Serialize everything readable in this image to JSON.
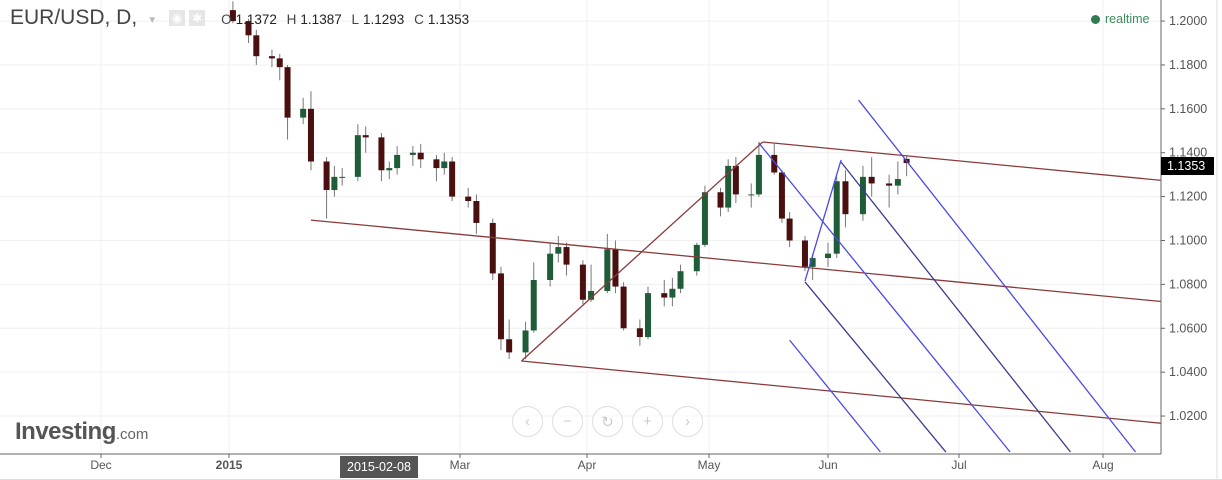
{
  "header": {
    "symbol": "EUR/USD, D,",
    "ohlc": [
      {
        "key": "O",
        "value": "1.1372"
      },
      {
        "key": "H",
        "value": "1.1387"
      },
      {
        "key": "L",
        "value": "1.1293"
      },
      {
        "key": "C",
        "value": "1.1353"
      }
    ]
  },
  "status": {
    "label": "realtime",
    "color": "#2e7d52"
  },
  "logo": {
    "name": "Investing",
    "suffix": ".com"
  },
  "nav_buttons": [
    {
      "name": "scroll-left",
      "glyph": "‹"
    },
    {
      "name": "zoom-out",
      "glyph": "−"
    },
    {
      "name": "reset",
      "glyph": "↻"
    },
    {
      "name": "zoom-in",
      "glyph": "+"
    },
    {
      "name": "scroll-right",
      "glyph": "›"
    }
  ],
  "crosshair_date": "2015-02-08",
  "last_price": "1.1353",
  "chart_data": {
    "type": "candlestick",
    "ylim": [
      1.0027,
      1.2096
    ],
    "grid": true,
    "y_ticks": [
      "1.0200",
      "1.0400",
      "1.0600",
      "1.0800",
      "1.1000",
      "1.1200",
      "1.1400",
      "1.1600",
      "1.1800",
      "1.2000"
    ],
    "x_ticks": [
      {
        "label": "Dec",
        "date": "2014-12-01"
      },
      {
        "label": "2015",
        "date": "2015-01-01"
      },
      {
        "label": "Mar",
        "date": "2015-03-01"
      },
      {
        "label": "Apr",
        "date": "2015-04-01"
      },
      {
        "label": "May",
        "date": "2015-05-01"
      },
      {
        "label": "Jun",
        "date": "2015-06-01"
      },
      {
        "label": "Jul",
        "date": "2015-07-01"
      },
      {
        "label": "Aug",
        "date": "2015-08-01"
      }
    ],
    "colors": {
      "up": "#1f5c38",
      "down": "#4a1010",
      "wick": "#777777",
      "brown_fork": "#8b3a3a",
      "blue_fork": "#4a4ae8",
      "navy_fork": "#3b3b8f"
    },
    "candles": [
      [
        "2015-01-02",
        1.205,
        1.209,
        1.199,
        1.2
      ],
      [
        "2015-01-06",
        1.2,
        1.201,
        1.19,
        1.1935
      ],
      [
        "2015-01-08",
        1.1935,
        1.196,
        1.18,
        1.184
      ],
      [
        "2015-01-12",
        1.184,
        1.187,
        1.179,
        1.183
      ],
      [
        "2015-01-14",
        1.183,
        1.185,
        1.173,
        1.179
      ],
      [
        "2015-01-16",
        1.179,
        1.18,
        1.146,
        1.156
      ],
      [
        "2015-01-20",
        1.156,
        1.165,
        1.153,
        1.16
      ],
      [
        "2015-01-22",
        1.16,
        1.168,
        1.132,
        1.136
      ],
      [
        "2015-01-26",
        1.136,
        1.138,
        1.11,
        1.123
      ],
      [
        "2015-01-28",
        1.123,
        1.134,
        1.12,
        1.129
      ],
      [
        "2015-01-30",
        1.129,
        1.133,
        1.125,
        1.129
      ],
      [
        "2015-02-03",
        1.129,
        1.153,
        1.127,
        1.148
      ],
      [
        "2015-02-05",
        1.148,
        1.152,
        1.14,
        1.147
      ],
      [
        "2015-02-09",
        1.147,
        1.149,
        1.127,
        1.132
      ],
      [
        "2015-02-11",
        1.132,
        1.136,
        1.128,
        1.133
      ],
      [
        "2015-02-13",
        1.133,
        1.143,
        1.13,
        1.139
      ],
      [
        "2015-02-17",
        1.139,
        1.143,
        1.134,
        1.14
      ],
      [
        "2015-02-19",
        1.14,
        1.144,
        1.133,
        1.137
      ],
      [
        "2015-02-23",
        1.137,
        1.139,
        1.127,
        1.133
      ],
      [
        "2015-02-25",
        1.133,
        1.14,
        1.13,
        1.136
      ],
      [
        "2015-02-27",
        1.136,
        1.138,
        1.118,
        1.12
      ],
      [
        "2015-03-03",
        1.12,
        1.124,
        1.115,
        1.118
      ],
      [
        "2015-03-05",
        1.118,
        1.121,
        1.103,
        1.108
      ],
      [
        "2015-03-09",
        1.108,
        1.11,
        1.082,
        1.085
      ],
      [
        "2015-03-11",
        1.085,
        1.088,
        1.05,
        1.055
      ],
      [
        "2015-03-13",
        1.055,
        1.064,
        1.046,
        1.049
      ],
      [
        "2015-03-17",
        1.049,
        1.063,
        1.046,
        1.059
      ],
      [
        "2015-03-19",
        1.059,
        1.09,
        1.058,
        1.082
      ],
      [
        "2015-03-23",
        1.082,
        1.099,
        1.079,
        1.094
      ],
      [
        "2015-03-25",
        1.094,
        1.102,
        1.09,
        1.097
      ],
      [
        "2015-03-27",
        1.097,
        1.099,
        1.084,
        1.089
      ],
      [
        "2015-03-31",
        1.089,
        1.091,
        1.071,
        1.073
      ],
      [
        "2015-04-02",
        1.073,
        1.089,
        1.072,
        1.077
      ],
      [
        "2015-04-06",
        1.077,
        1.103,
        1.076,
        1.096
      ],
      [
        "2015-04-08",
        1.096,
        1.1,
        1.076,
        1.079
      ],
      [
        "2015-04-10",
        1.079,
        1.081,
        1.059,
        1.06
      ],
      [
        "2015-04-14",
        1.06,
        1.064,
        1.052,
        1.056
      ],
      [
        "2015-04-16",
        1.056,
        1.079,
        1.055,
        1.076
      ],
      [
        "2015-04-20",
        1.076,
        1.082,
        1.07,
        1.074
      ],
      [
        "2015-04-22",
        1.074,
        1.083,
        1.07,
        1.078
      ],
      [
        "2015-04-24",
        1.078,
        1.089,
        1.076,
        1.086
      ],
      [
        "2015-04-28",
        1.086,
        1.099,
        1.084,
        1.098
      ],
      [
        "2015-04-30",
        1.098,
        1.125,
        1.097,
        1.122
      ],
      [
        "2015-05-04",
        1.122,
        1.124,
        1.111,
        1.115
      ],
      [
        "2015-05-06",
        1.115,
        1.137,
        1.113,
        1.134
      ],
      [
        "2015-05-08",
        1.134,
        1.138,
        1.117,
        1.121
      ],
      [
        "2015-05-12",
        1.121,
        1.126,
        1.115,
        1.121
      ],
      [
        "2015-05-14",
        1.121,
        1.145,
        1.12,
        1.139
      ],
      [
        "2015-05-18",
        1.139,
        1.144,
        1.13,
        1.131
      ],
      [
        "2015-05-20",
        1.131,
        1.132,
        1.108,
        1.11
      ],
      [
        "2015-05-22",
        1.11,
        1.113,
        1.097,
        1.1
      ],
      [
        "2015-05-26",
        1.1,
        1.102,
        1.086,
        1.088
      ],
      [
        "2015-05-28",
        1.088,
        1.094,
        1.082,
        1.092
      ],
      [
        "2015-06-01",
        1.092,
        1.099,
        1.088,
        1.094
      ],
      [
        "2015-06-03",
        1.094,
        1.129,
        1.092,
        1.127
      ],
      [
        "2015-06-05",
        1.127,
        1.132,
        1.106,
        1.112
      ],
      [
        "2015-06-09",
        1.112,
        1.134,
        1.109,
        1.129
      ],
      [
        "2015-06-11",
        1.129,
        1.138,
        1.12,
        1.126
      ],
      [
        "2015-06-15",
        1.126,
        1.13,
        1.115,
        1.125
      ],
      [
        "2015-06-17",
        1.125,
        1.136,
        1.121,
        1.128
      ],
      [
        "2015-06-19",
        1.1372,
        1.1387,
        1.1293,
        1.1353
      ]
    ],
    "drawings": [
      {
        "name": "brown-handle",
        "color": "brown_fork",
        "from": [
          "2015-03-16",
          1.0451
        ],
        "to": [
          "2015-05-15",
          1.1449
        ]
      },
      {
        "name": "brown-upper",
        "color": "brown_fork",
        "from": [
          "2015-05-15",
          1.1449
        ],
        "to": [
          "2015-08-15",
          1.1271
        ]
      },
      {
        "name": "brown-median",
        "color": "brown_fork",
        "from": [
          "2015-01-22",
          1.1093
        ],
        "to": [
          "2015-08-15",
          1.0719
        ]
      },
      {
        "name": "brown-lower",
        "color": "brown_fork",
        "from": [
          "2015-03-16",
          1.0451
        ],
        "to": [
          "2015-08-15",
          1.0164
        ]
      },
      {
        "name": "blue-handle",
        "color": "blue_fork",
        "from": [
          "2015-05-26",
          1.0815
        ],
        "to": [
          "2015-06-04",
          1.1367
        ]
      },
      {
        "name": "blue-line-1",
        "color": "blue_fork",
        "from": [
          "2015-05-14",
          1.1444
        ],
        "to": [
          "2015-07-12",
          1.0036
        ]
      },
      {
        "name": "navy-line-1",
        "color": "navy_fork",
        "from": [
          "2015-06-04",
          1.1357
        ],
        "to": [
          "2015-07-25",
          1.0036
        ]
      },
      {
        "name": "navy-line-2",
        "color": "navy_fork",
        "from": [
          "2015-05-26",
          1.0811
        ],
        "to": [
          "2015-06-28",
          1.0036
        ]
      },
      {
        "name": "blue-line-2",
        "color": "blue_fork",
        "from": [
          "2015-06-08",
          1.164
        ],
        "to": [
          "2015-08-08",
          1.0036
        ]
      },
      {
        "name": "blue-line-3",
        "color": "blue_fork",
        "from": [
          "2015-05-22",
          1.0546
        ],
        "to": [
          "2015-06-13",
          1.0036
        ]
      }
    ]
  }
}
